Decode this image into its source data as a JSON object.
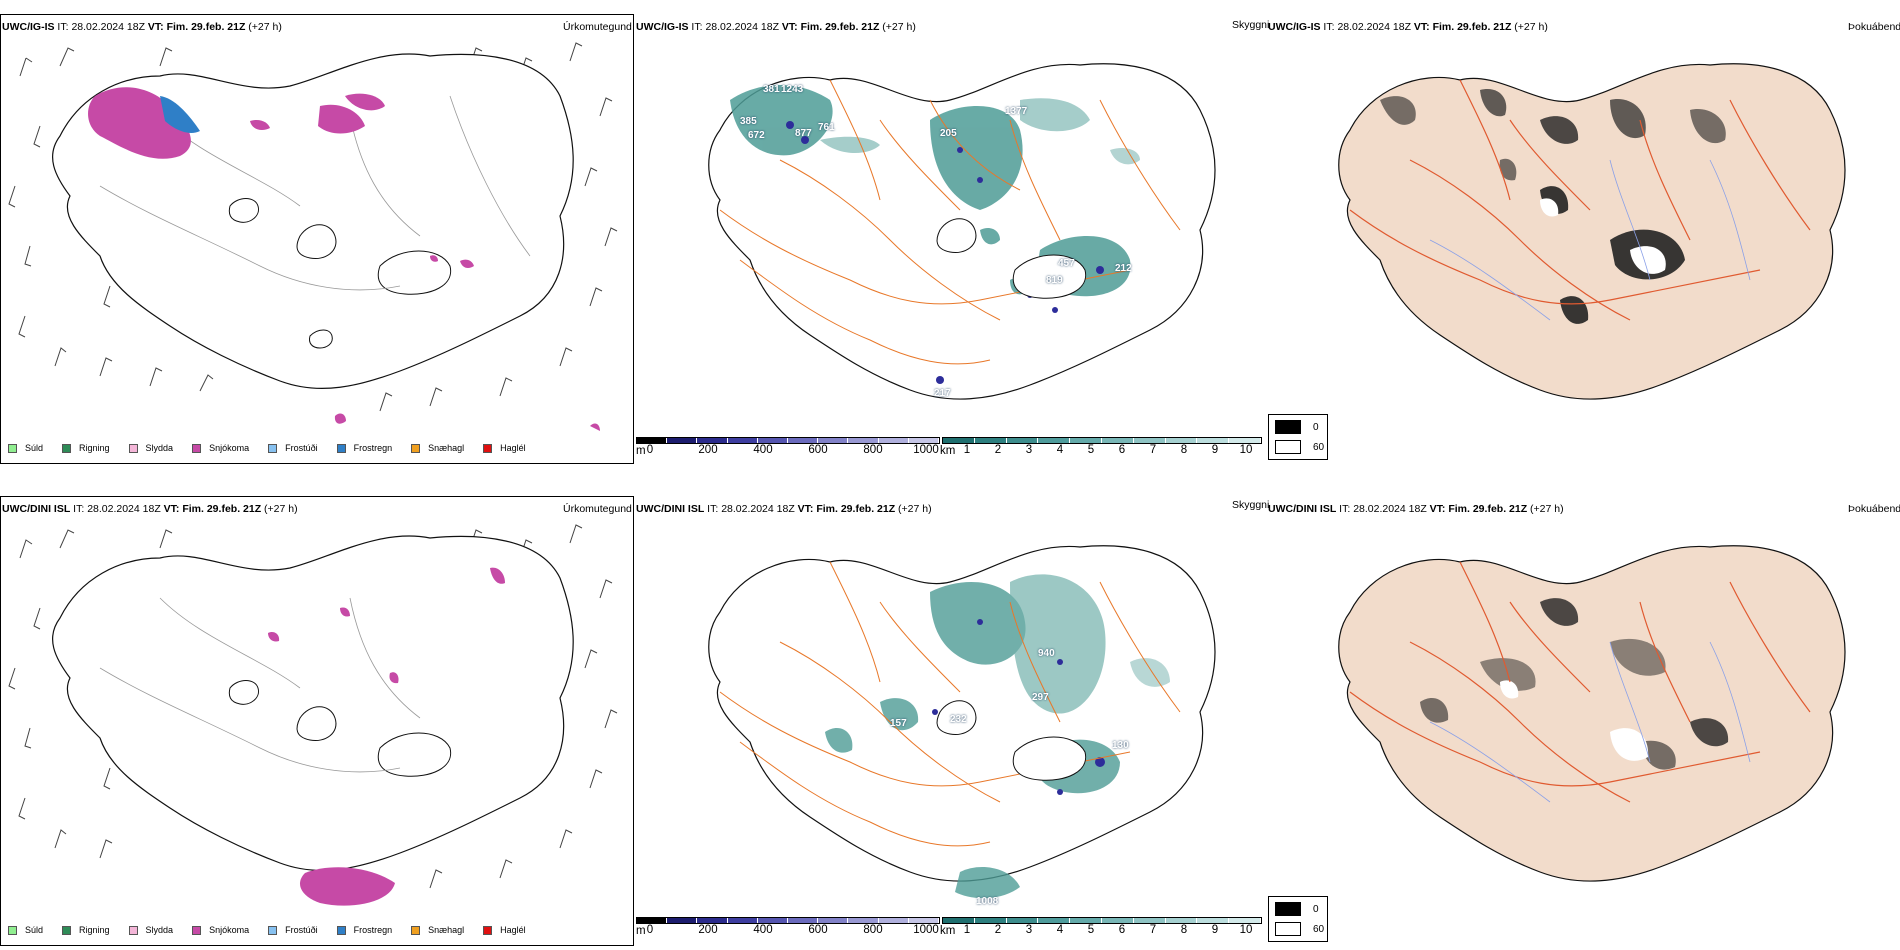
{
  "rows": [
    {
      "id": "igis",
      "ptype_panel": {
        "model": "UWC/IG-IS",
        "it_label": "IT:",
        "it_value": "28.02.2024 18Z",
        "vt_label": "VT:",
        "vt_value": "Fim. 29.feb. 21Z",
        "lead": "(+27 h)",
        "right_label": "Úrkomutegund"
      },
      "cloud_panel": {
        "model": "UWC/IG-IS",
        "it_label": "IT:",
        "it_value": "28.02.2024 18Z",
        "vt_label": "VT:",
        "vt_value": "Fim. 29.feb. 21Z",
        "lead": "(+27 h)",
        "right_label": "Skyggni",
        "values": [
          "381",
          "1243",
          "385",
          "672",
          "877",
          "761",
          "205",
          "1377",
          "457",
          "819",
          "212",
          "217"
        ]
      },
      "fog_panel": {
        "model": "UWC/IG-IS",
        "it_label": "IT:",
        "it_value": "28.02.2024 18Z",
        "vt_label": "VT:",
        "vt_value": "Fim. 29.feb. 21Z",
        "lead": "(+27 h)",
        "right_label": "Þokuábendi"
      }
    },
    {
      "id": "dini",
      "ptype_panel": {
        "model": "UWC/DINI ISL",
        "it_label": "IT:",
        "it_value": "28.02.2024 18Z",
        "vt_label": "VT:",
        "vt_value": "Fim. 29.feb. 21Z",
        "lead": "(+27 h)",
        "right_label": "Úrkomutegund"
      },
      "cloud_panel": {
        "model": "UWC/DINI ISL",
        "it_label": "IT:",
        "it_value": "28.02.2024 18Z",
        "vt_label": "VT:",
        "vt_value": "Fim. 29.feb. 21Z",
        "lead": "(+27 h)",
        "right_label": "Skyggni",
        "values": [
          "940",
          "297",
          "157",
          "232",
          "130",
          "1008"
        ]
      },
      "fog_panel": {
        "model": "UWC/DINI ISL",
        "it_label": "IT:",
        "it_value": "28.02.2024 18Z",
        "vt_label": "VT:",
        "vt_value": "Fim. 29.feb. 21Z",
        "lead": "(+27 h)",
        "right_label": "Þokuábendi"
      }
    }
  ],
  "ptype_legend": [
    {
      "label": "Súld",
      "color": "#90ee90"
    },
    {
      "label": "Rigning",
      "color": "#2e8b57"
    },
    {
      "label": "Slydda",
      "color": "#f4b6d8"
    },
    {
      "label": "Snjókoma",
      "color": "#c64aa6"
    },
    {
      "label": "Frostúði",
      "color": "#87c1f0"
    },
    {
      "label": "Frostregn",
      "color": "#2f7fc7"
    },
    {
      "label": "Snæhagl",
      "color": "#f0a020"
    },
    {
      "label": "Haglél",
      "color": "#e01010"
    }
  ],
  "ceiling_scale": {
    "unit": "m",
    "ticks": [
      "0",
      "200",
      "400",
      "600",
      "800",
      "1000"
    ],
    "colors": [
      "#000000",
      "#1c1c6e",
      "#2b2b8c",
      "#3d3da0",
      "#5555b0",
      "#6b6bbd",
      "#8282c8",
      "#9999d3",
      "#b0b0dd",
      "#c6c6e6"
    ]
  },
  "visibility_scale": {
    "unit": "km",
    "ticks": [
      "1",
      "2",
      "3",
      "4",
      "5",
      "6",
      "7",
      "8",
      "9",
      "10"
    ],
    "colors": [
      "#1f6f6f",
      "#2d7f7f",
      "#3d8d8d",
      "#4f9c9c",
      "#64aaaa",
      "#79b7b7",
      "#8fc4c4",
      "#a6d1d1",
      "#bcdede",
      "#d3eaea"
    ]
  },
  "fog_legend": {
    "items": [
      {
        "label": "0",
        "color": "#000000"
      },
      {
        "label": "60",
        "color": "#ffffff"
      }
    ]
  },
  "colors": {
    "land_fog": "#f2dccb",
    "roads": "#e8782a",
    "coast": "#000000",
    "snow": "#c64aa6",
    "cloud_teal": "#4e9c96",
    "ceiling_blue": "#2d2d9a"
  }
}
